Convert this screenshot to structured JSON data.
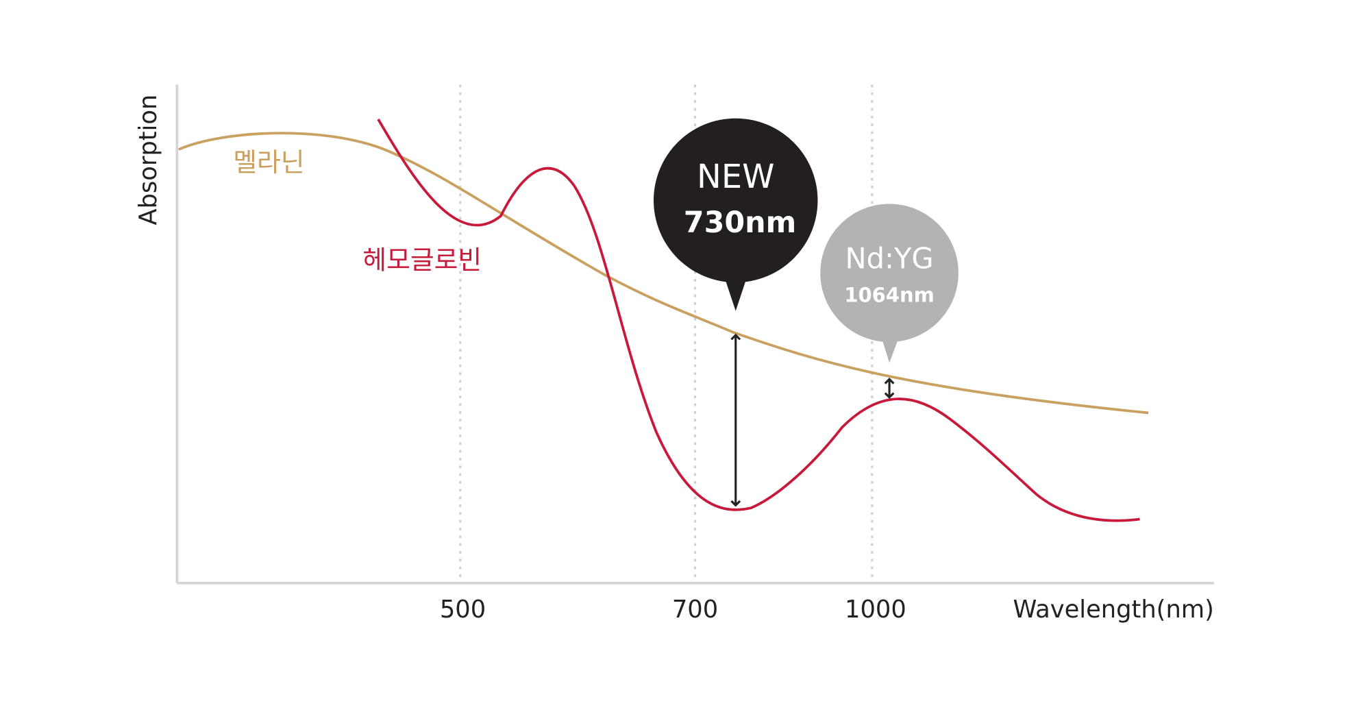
{
  "axis": {
    "y_label": "Absorption",
    "x_label": "Wavelength(nm)",
    "ticks": [
      "500",
      "700",
      "1000"
    ]
  },
  "curves": {
    "melanin": "멜라닌",
    "hemoglobin": "헤모글로빈"
  },
  "callouts": [
    {
      "title": "NEW",
      "wavelength": "730nm"
    },
    {
      "title": "Nd:YG",
      "wavelength": "1064nm"
    }
  ]
}
